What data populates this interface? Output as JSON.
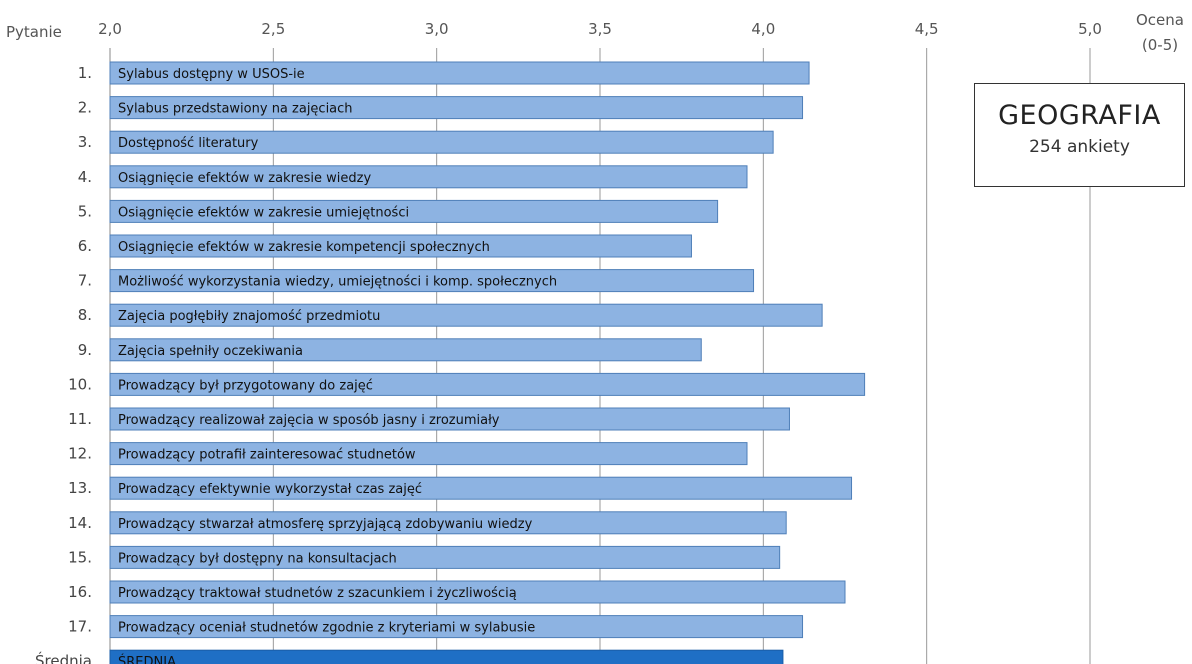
{
  "chart_data": {
    "type": "bar",
    "orientation": "horizontal",
    "y_axis_title": "Pytanie",
    "x_axis_title_line1": "Ocena",
    "x_axis_title_line2": "(0-5)",
    "xlim": [
      2.0,
      5.0
    ],
    "x_ticks": [
      2.0,
      2.5,
      3.0,
      3.5,
      4.0,
      4.5,
      5.0
    ],
    "x_tick_labels": [
      "2,0",
      "2,5",
      "3,0",
      "3,5",
      "4,0",
      "4,5",
      "5,0"
    ],
    "grid": true,
    "bar_color": "#8DB3E2",
    "average_bar_color": "#1F6FC5",
    "rows": [
      {
        "number": "1.",
        "label": "Sylabus dostępny w USOS-ie",
        "value": 4.14
      },
      {
        "number": "2.",
        "label": "Sylabus przedstawiony na zajęciach",
        "value": 4.12
      },
      {
        "number": "3.",
        "label": "Dostępność literatury",
        "value": 4.03
      },
      {
        "number": "4.",
        "label": "Osiągnięcie efektów w zakresie wiedzy",
        "value": 3.95
      },
      {
        "number": "5.",
        "label": "Osiągnięcie efektów w zakresie umiejętności",
        "value": 3.86
      },
      {
        "number": "6.",
        "label": "Osiągnięcie efektów w zakresie kompetencji społecznych",
        "value": 3.78
      },
      {
        "number": "7.",
        "label": "Możliwość wykorzystania wiedzy, umiejętności i komp. społecznych",
        "value": 3.97
      },
      {
        "number": "8.",
        "label": "Zajęcia pogłębiły znajomość przedmiotu",
        "value": 4.18
      },
      {
        "number": "9.",
        "label": "Zajęcia spełniły oczekiwania",
        "value": 3.81
      },
      {
        "number": "10.",
        "label": "Prowadzący był przygotowany do zajęć",
        "value": 4.31
      },
      {
        "number": "11.",
        "label": "Prowadzący realizował zajęcia w sposób jasny i zrozumiały",
        "value": 4.08
      },
      {
        "number": "12.",
        "label": "Prowadzący potrafił zainteresować studnetów",
        "value": 3.95
      },
      {
        "number": "13.",
        "label": "Prowadzący efektywnie wykorzystał czas zajęć",
        "value": 4.27
      },
      {
        "number": "14.",
        "label": "Prowadzący stwarzał atmosferę sprzyjającą zdobywaniu wiedzy",
        "value": 4.07
      },
      {
        "number": "15.",
        "label": "Prowadzący był dostępny na konsultacjach",
        "value": 4.05
      },
      {
        "number": "16.",
        "label": "Prowadzący traktował studnetów z szacunkiem i życzliwością",
        "value": 4.25
      },
      {
        "number": "17.",
        "label": "Prowadzący oceniał studnetów zgodnie z kryteriami w sylabusie",
        "value": 4.12
      },
      {
        "number": "Średnia",
        "label": "ŚREDNIA",
        "value": 4.06,
        "is_average": true
      }
    ]
  },
  "info_box": {
    "title": "GEOGRAFIA",
    "subtitle": "254 ankiety"
  }
}
